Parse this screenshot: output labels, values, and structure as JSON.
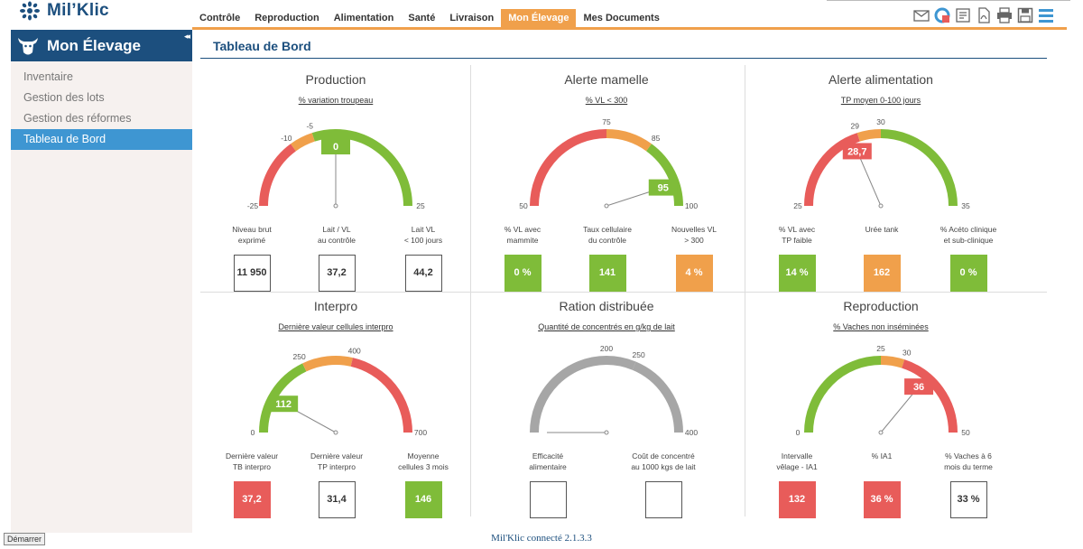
{
  "app": {
    "name": "Mil’Klic"
  },
  "nav": [
    {
      "label": "Contrôle"
    },
    {
      "label": "Reproduction"
    },
    {
      "label": "Alimentation"
    },
    {
      "label": "Santé"
    },
    {
      "label": "Livraison"
    },
    {
      "label": "Mon Élevage",
      "active": true
    },
    {
      "label": "Mes Documents"
    }
  ],
  "toolbar_icons": [
    "mail-icon",
    "sync-icon",
    "export-icon",
    "pdf-icon",
    "print-icon",
    "save-icon",
    "menu-icon"
  ],
  "sidebar": {
    "title": "Mon Élevage",
    "collapse": "◂◂",
    "items": [
      {
        "label": "Inventaire"
      },
      {
        "label": "Gestion des lots"
      },
      {
        "label": "Gestion des réformes"
      },
      {
        "label": "Tableau de Bord",
        "active": true
      }
    ]
  },
  "main": {
    "title": "Tableau de Bord"
  },
  "colors": {
    "red": "#e85c5a",
    "orange": "#f0a04b",
    "green": "#7fbc39",
    "grey": "#a6a6a6",
    "navy": "#1c4f7e"
  },
  "panels": [
    {
      "title": "Production",
      "subtitle": "% variation troupeau",
      "gauge": {
        "min": -25,
        "max": 25,
        "value": 0,
        "value_label": "0",
        "value_color": "#7fbc39",
        "segments": [
          {
            "from": -25,
            "to": -10,
            "color": "#e85c5a"
          },
          {
            "from": -10,
            "to": -5,
            "color": "#f0a04b"
          },
          {
            "from": -5,
            "to": 25,
            "color": "#7fbc39"
          }
        ],
        "ticks": [
          {
            "v": -10,
            "label": "-10"
          },
          {
            "v": -5,
            "label": "-5"
          }
        ],
        "min_label": "-25",
        "max_label": "25"
      },
      "metrics": [
        {
          "label": "Niveau brut\nexprimé",
          "value": "11 950",
          "color": "none"
        },
        {
          "label": "Lait / VL\nau contrôle",
          "value": "37,2",
          "color": "none"
        },
        {
          "label": "Lait VL\n< 100 jours",
          "value": "44,2",
          "color": "none"
        }
      ]
    },
    {
      "title": "Alerte mamelle",
      "subtitle": "% VL < 300",
      "gauge": {
        "min": 50,
        "max": 100,
        "value": 95,
        "value_label": "95",
        "value_color": "#7fbc39",
        "segments": [
          {
            "from": 50,
            "to": 75,
            "color": "#e85c5a"
          },
          {
            "from": 75,
            "to": 85,
            "color": "#f0a04b"
          },
          {
            "from": 85,
            "to": 100,
            "color": "#7fbc39"
          }
        ],
        "ticks": [
          {
            "v": 75,
            "label": "75"
          },
          {
            "v": 85,
            "label": "85"
          }
        ],
        "min_label": "50",
        "max_label": "100"
      },
      "metrics": [
        {
          "label": "% VL avec\nmammite",
          "value": "0 %",
          "color": "green"
        },
        {
          "label": "Taux cellulaire\ndu contrôle",
          "value": "141",
          "color": "green"
        },
        {
          "label": "Nouvelles VL\n> 300",
          "value": "4 %",
          "color": "orange"
        }
      ]
    },
    {
      "title": "Alerte alimentation",
      "subtitle": "TP moyen 0-100 jours",
      "gauge": {
        "min": 25,
        "max": 35,
        "value": 28.7,
        "value_label": "28,7",
        "value_color": "#e85c5a",
        "segments": [
          {
            "from": 25,
            "to": 29,
            "color": "#e85c5a"
          },
          {
            "from": 29,
            "to": 30,
            "color": "#f0a04b"
          },
          {
            "from": 30,
            "to": 35,
            "color": "#7fbc39"
          }
        ],
        "ticks": [
          {
            "v": 29,
            "label": "29"
          },
          {
            "v": 30,
            "label": "30"
          }
        ],
        "min_label": "25",
        "max_label": "35"
      },
      "metrics": [
        {
          "label": "% VL avec\nTP faible",
          "value": "14 %",
          "color": "green"
        },
        {
          "label": "Urée tank",
          "value": "162",
          "color": "orange"
        },
        {
          "label": "% Acéto clinique\net sub-clinique",
          "value": "0 %",
          "color": "green"
        }
      ]
    },
    {
      "title": "Interpro",
      "subtitle": "Dernière valeur cellules interpro",
      "gauge": {
        "min": 0,
        "max": 700,
        "value": 112,
        "value_label": "112",
        "value_color": "#7fbc39",
        "segments": [
          {
            "from": 0,
            "to": 250,
            "color": "#7fbc39"
          },
          {
            "from": 250,
            "to": 400,
            "color": "#f0a04b"
          },
          {
            "from": 400,
            "to": 700,
            "color": "#e85c5a"
          }
        ],
        "ticks": [
          {
            "v": 250,
            "label": "250"
          },
          {
            "v": 400,
            "label": "400"
          }
        ],
        "min_label": "0",
        "max_label": "700"
      },
      "metrics": [
        {
          "label": "Dernière valeur\nTB interpro",
          "value": "37,2",
          "color": "red"
        },
        {
          "label": "Dernière valeur\nTP interpro",
          "value": "31,4",
          "color": "none"
        },
        {
          "label": "Moyenne\ncellules 3 mois",
          "value": "146",
          "color": "green"
        }
      ]
    },
    {
      "title": "Ration distribuée",
      "subtitle": "Quantité de concentrés en g/kg de lait",
      "gauge": {
        "min": 0,
        "max": 400,
        "value": 0,
        "value_label": "",
        "value_color": "#a6a6a6",
        "segments": [
          {
            "from": 0,
            "to": 200,
            "color": "#a6a6a6"
          },
          {
            "from": 200,
            "to": 250,
            "color": "#a6a6a6"
          },
          {
            "from": 250,
            "to": 400,
            "color": "#a6a6a6"
          }
        ],
        "ticks": [
          {
            "v": 200,
            "label": "200"
          },
          {
            "v": 250,
            "label": "250"
          }
        ],
        "min_label": "",
        "max_label": "400"
      },
      "metrics": [
        {
          "label": "Efficacité\nalimentaire",
          "value": "",
          "color": "none"
        },
        {
          "label": "Coût de concentré\nau 1000 kgs de lait",
          "value": "",
          "color": "none"
        }
      ]
    },
    {
      "title": "Reproduction",
      "subtitle": "% Vaches non inséminées",
      "gauge": {
        "min": 0,
        "max": 50,
        "value": 36,
        "value_label": "36",
        "value_color": "#e85c5a",
        "segments": [
          {
            "from": 0,
            "to": 25,
            "color": "#7fbc39"
          },
          {
            "from": 25,
            "to": 30,
            "color": "#f0a04b"
          },
          {
            "from": 30,
            "to": 50,
            "color": "#e85c5a"
          }
        ],
        "ticks": [
          {
            "v": 25,
            "label": "25"
          },
          {
            "v": 30,
            "label": "30"
          }
        ],
        "min_label": "0",
        "max_label": "50"
      },
      "metrics": [
        {
          "label": "Intervalle\nvêlage - IA1",
          "value": "132",
          "color": "red"
        },
        {
          "label": "% IA1",
          "value": "36 %",
          "color": "red"
        },
        {
          "label": "% Vaches à 6\nmois du terme",
          "value": "33 %",
          "color": "none"
        }
      ]
    }
  ],
  "footer": {
    "text": "Mil'Klic connecté 2.1.3.3",
    "start_button": "Démarrer"
  }
}
